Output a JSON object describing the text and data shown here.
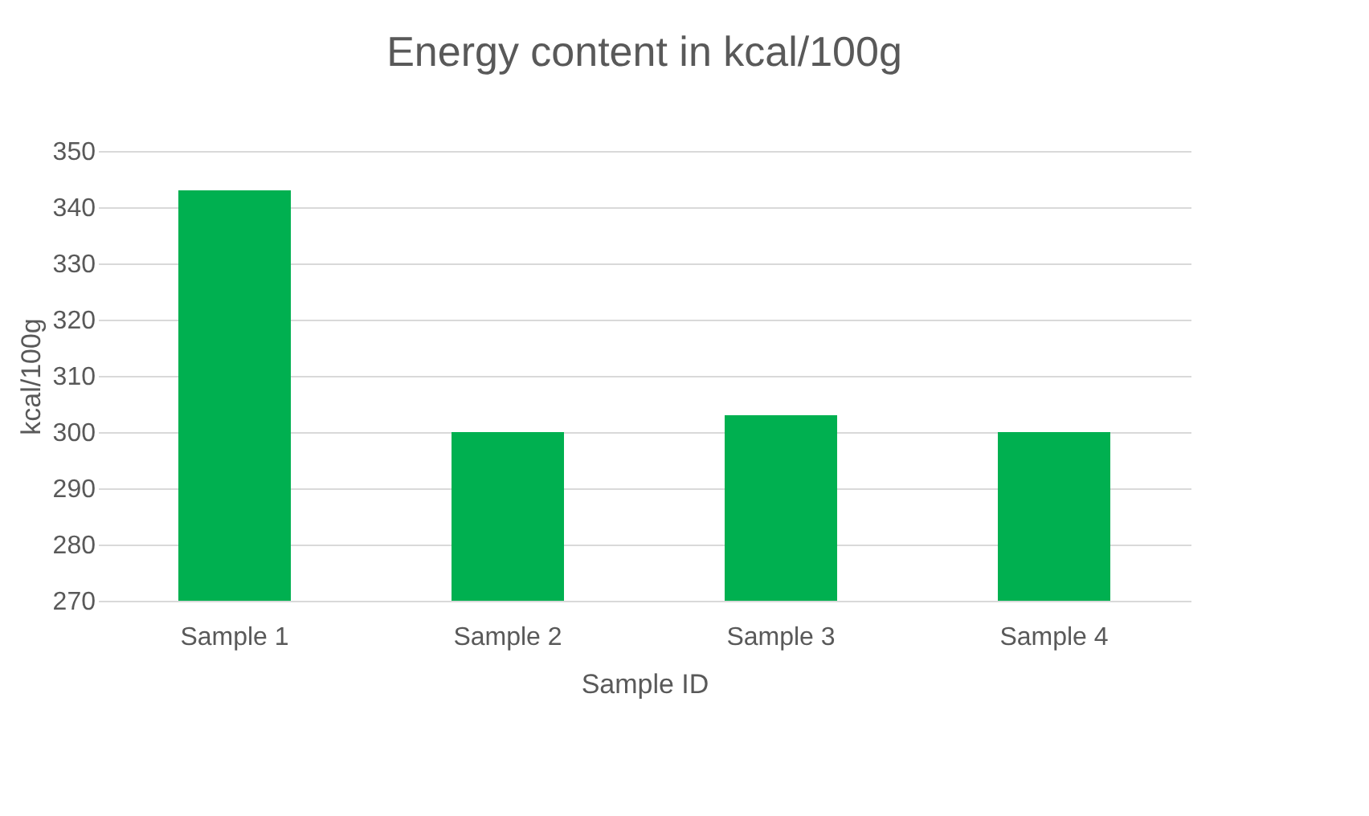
{
  "chart_data": {
    "type": "bar",
    "title": "Energy content in kcal/100g",
    "xlabel": "Sample ID",
    "ylabel": "kcal/100g",
    "categories": [
      "Sample 1",
      "Sample 2",
      "Sample 3",
      "Sample 4"
    ],
    "values": [
      343,
      300,
      303,
      300
    ],
    "color": "#00b050",
    "ylim": [
      270,
      350
    ],
    "yticks": [
      270,
      280,
      290,
      300,
      310,
      320,
      330,
      340,
      350
    ],
    "grid": "y"
  }
}
